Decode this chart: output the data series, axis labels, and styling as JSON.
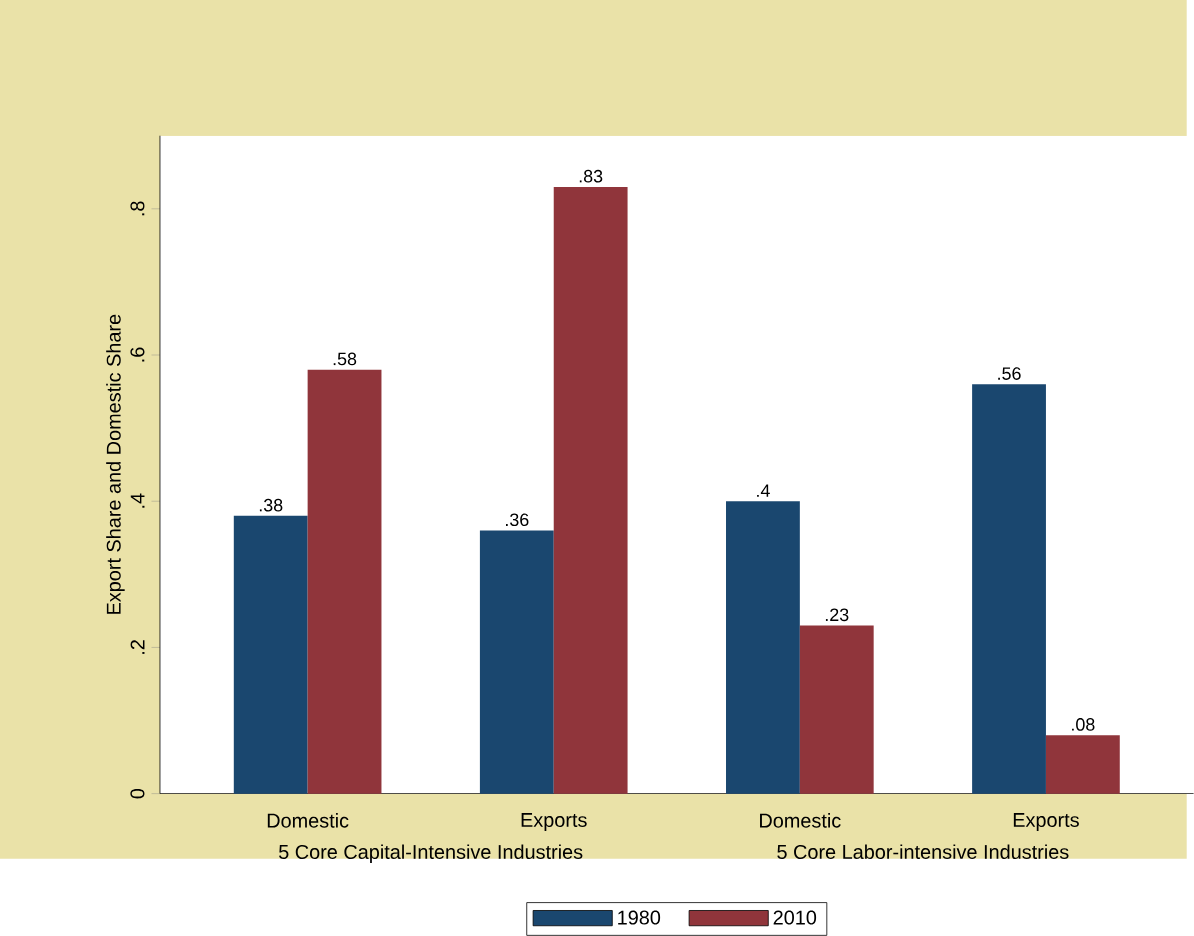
{
  "chart_data": {
    "type": "bar",
    "ylabel": "Export Share and Domestic Share",
    "categories": [
      "Domestic",
      "Exports",
      "Domestic",
      "Exports"
    ],
    "series": [
      {
        "name": "1980",
        "color": "#1a476f",
        "values": [
          0.38,
          0.36,
          0.4,
          0.56
        ],
        "value_labels": [
          ".38",
          ".36",
          ".4",
          ".56"
        ]
      },
      {
        "name": "2010",
        "color": "#90353b",
        "values": [
          0.58,
          0.83,
          0.23,
          0.08
        ],
        "value_labels": [
          ".58",
          ".83",
          ".23",
          ".08"
        ]
      }
    ],
    "ylim": [
      0,
      0.9
    ],
    "yticks": [
      0,
      {
        "value": 0.2,
        "label": ".2"
      },
      {
        "value": 0.4,
        "label": ".4"
      },
      {
        "value": 0.6,
        "label": ".6"
      },
      {
        "value": 0.8,
        "label": ".8"
      }
    ],
    "annotations": [
      "5 Core Capital-Intensive Industries",
      "5 Core Labor-intensive Industries"
    ],
    "legend": "bottom"
  }
}
